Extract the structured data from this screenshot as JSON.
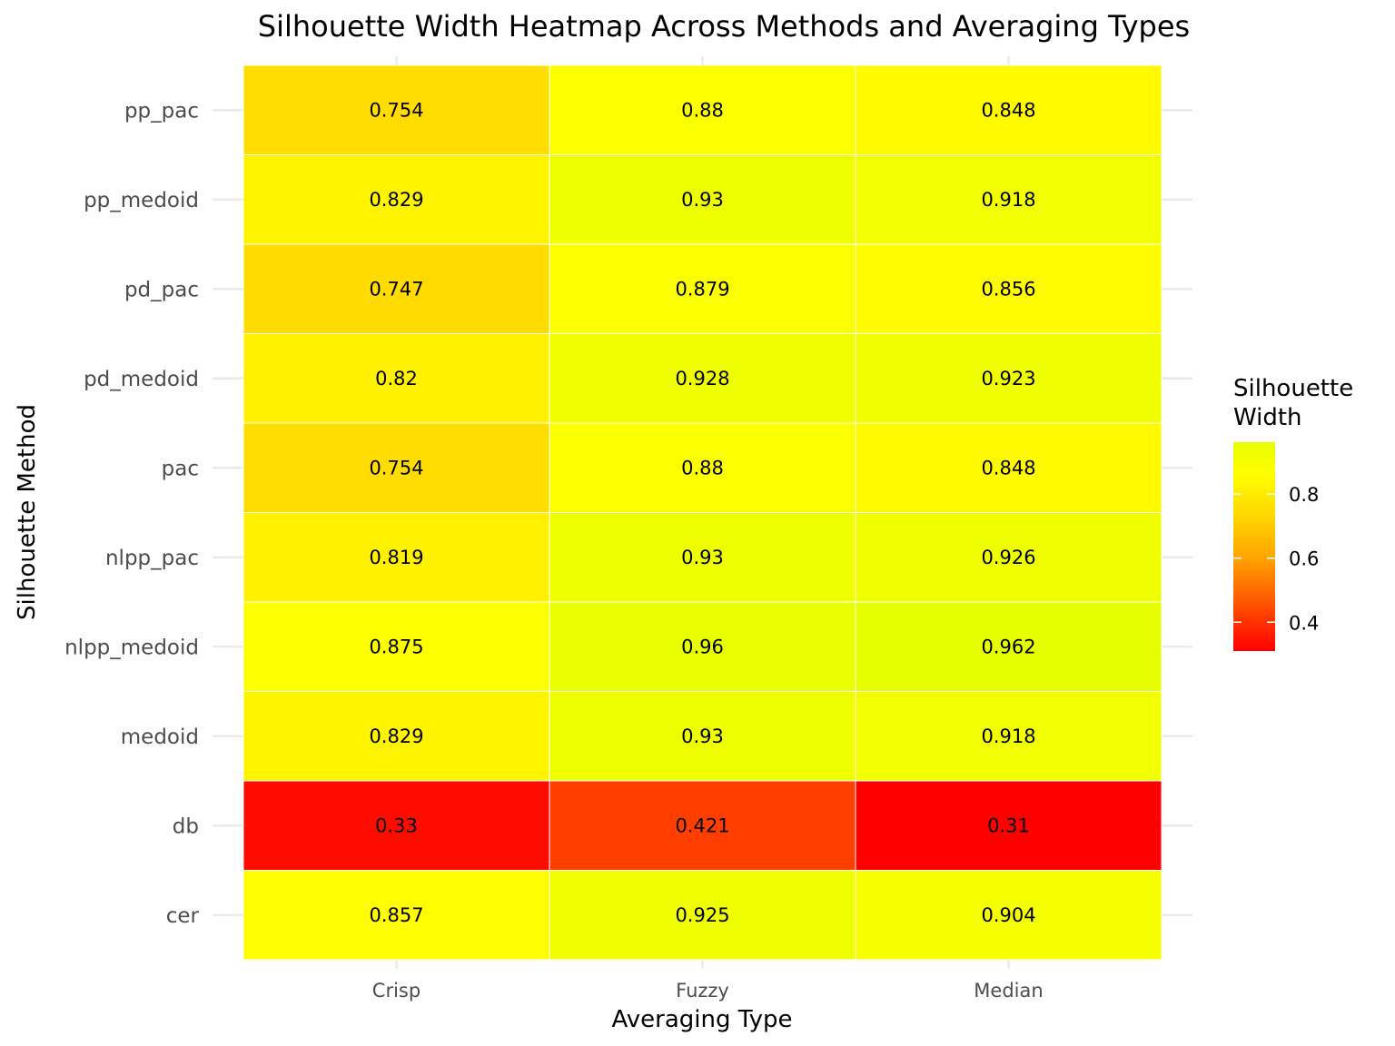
{
  "chart_data": {
    "type": "heatmap",
    "title": "Silhouette Width Heatmap Across Methods and Averaging Types",
    "xlabel": "Averaging Type",
    "ylabel": "Silhouette Method",
    "x_categories": [
      "Crisp",
      "Fuzzy",
      "Median"
    ],
    "y_categories": [
      "pp_pac",
      "pp_medoid",
      "pd_pac",
      "pd_medoid",
      "pac",
      "nlpp_pac",
      "nlpp_medoid",
      "medoid",
      "db",
      "cer"
    ],
    "values": [
      [
        0.754,
        0.88,
        0.848
      ],
      [
        0.829,
        0.93,
        0.918
      ],
      [
        0.747,
        0.879,
        0.856
      ],
      [
        0.82,
        0.928,
        0.923
      ],
      [
        0.754,
        0.88,
        0.848
      ],
      [
        0.819,
        0.93,
        0.926
      ],
      [
        0.875,
        0.96,
        0.962
      ],
      [
        0.829,
        0.93,
        0.918
      ],
      [
        0.33,
        0.421,
        0.31
      ],
      [
        0.857,
        0.925,
        0.904
      ]
    ],
    "value_labels": [
      [
        "0.754",
        "0.88",
        "0.848"
      ],
      [
        "0.829",
        "0.93",
        "0.918"
      ],
      [
        "0.747",
        "0.879",
        "0.856"
      ],
      [
        "0.82",
        "0.928",
        "0.923"
      ],
      [
        "0.754",
        "0.88",
        "0.848"
      ],
      [
        "0.819",
        "0.93",
        "0.926"
      ],
      [
        "0.875",
        "0.96",
        "0.962"
      ],
      [
        "0.829",
        "0.93",
        "0.918"
      ],
      [
        "0.33",
        "0.421",
        "0.31"
      ],
      [
        "0.857",
        "0.925",
        "0.904"
      ]
    ],
    "legend": {
      "title_lines": [
        "Silhouette",
        "Width"
      ],
      "ticks": [
        0.4,
        0.6,
        0.8
      ],
      "tick_labels": [
        "0.4",
        "0.6",
        "0.8"
      ],
      "range": [
        0.31,
        0.962
      ],
      "placement": "right"
    },
    "color_scale": {
      "low": "#ff0000",
      "mid_orange": "#ffa500",
      "mid_gold": "#ffd700",
      "mid_yellow": "#ffff00",
      "high": "#e6ff00"
    },
    "grid": true
  }
}
